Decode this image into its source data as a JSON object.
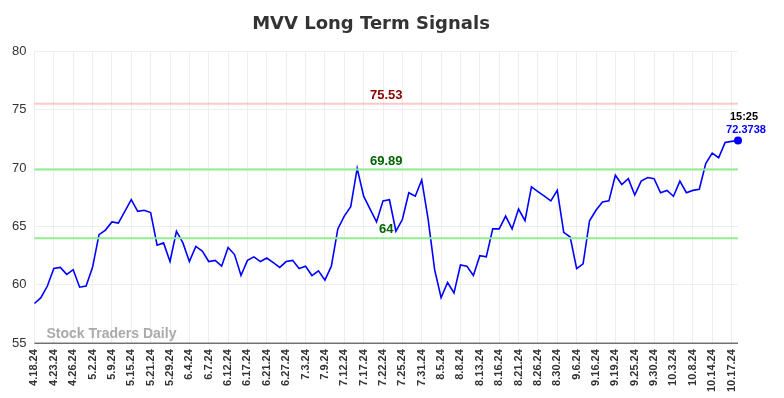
{
  "chart_data": {
    "type": "line",
    "title": "MVV Long Term Signals",
    "categories": [
      "4.18.24",
      null,
      null,
      "4.23.24",
      null,
      null,
      "4.26.24",
      null,
      null,
      "5.2.24",
      null,
      null,
      "5.9.24",
      null,
      null,
      "5.15.24",
      null,
      null,
      "5.21.24",
      null,
      null,
      "5.29.24",
      null,
      null,
      "6.4.24",
      null,
      null,
      "6.7.24",
      null,
      null,
      "6.12.24",
      null,
      null,
      "6.17.24",
      null,
      null,
      "6.21.24",
      null,
      null,
      "6.27.24",
      null,
      null,
      "7.3.24",
      null,
      null,
      "7.9.24",
      null,
      null,
      "7.12.24",
      null,
      null,
      "7.17.24",
      null,
      null,
      "7.22.24",
      null,
      null,
      "7.25.24",
      null,
      null,
      "7.31.24",
      null,
      null,
      "8.5.24",
      null,
      null,
      "8.8.24",
      null,
      null,
      "8.13.24",
      null,
      null,
      "8.16.24",
      null,
      null,
      "8.21.24",
      null,
      null,
      "8.26.24",
      null,
      null,
      "8.30.24",
      null,
      null,
      "9.6.24",
      null,
      null,
      "9.16.24",
      null,
      null,
      "9.19.24",
      null,
      null,
      "9.25.24",
      null,
      null,
      "9.30.24",
      null,
      null,
      "10.3.24",
      null,
      null,
      "10.8.24",
      null,
      null,
      "10.14.24",
      null,
      null,
      "10.17.24",
      null
    ],
    "values": [
      58.4,
      58.9,
      59.9,
      61.4,
      61.5,
      60.9,
      61.3,
      59.8,
      59.9,
      61.5,
      64.3,
      64.7,
      65.4,
      65.3,
      66.3,
      67.3,
      66.3,
      66.4,
      66.2,
      63.4,
      63.6,
      62.0,
      64.6,
      63.6,
      62.0,
      63.3,
      62.9,
      62.0,
      62.1,
      61.6,
      63.2,
      62.6,
      60.8,
      62.1,
      62.4,
      62.0,
      62.3,
      61.9,
      61.5,
      62.0,
      62.1,
      61.4,
      61.6,
      60.8,
      61.2,
      60.4,
      61.6,
      64.8,
      65.9,
      66.7,
      70.0,
      67.6,
      66.5,
      65.4,
      67.2,
      67.3,
      64.6,
      65.6,
      67.9,
      67.6,
      69.0,
      65.6,
      61.3,
      58.9,
      60.2,
      59.3,
      61.7,
      61.6,
      60.8,
      62.5,
      62.4,
      64.8,
      64.8,
      65.9,
      64.8,
      66.5,
      65.5,
      68.4,
      68.0,
      67.6,
      67.2,
      68.1,
      64.5,
      64.1,
      61.4,
      61.8,
      65.5,
      66.4,
      67.1,
      67.2,
      69.4,
      68.6,
      69.1,
      67.7,
      68.9,
      69.2,
      69.1,
      67.9,
      68.1,
      67.6,
      68.9,
      67.9,
      68.1,
      68.2,
      70.4,
      71.3,
      70.9,
      72.2,
      72.3,
      72.3738
    ],
    "color": "#0000ff",
    "ylim": [
      55,
      80
    ],
    "yticks": [
      55,
      60,
      65,
      70,
      75,
      80
    ],
    "grid": true,
    "hlines": [
      {
        "value": 75.53,
        "label": "75.53",
        "color": "#8b0000"
      },
      {
        "value": 69.89,
        "label": "69.89",
        "color": "#006400"
      },
      {
        "value": 64,
        "label": "64",
        "color": "#006400"
      }
    ],
    "annotations": [
      {
        "text": "15:25"
      },
      {
        "text": "72.3738",
        "value": 72.3738
      }
    ],
    "watermark": "Stock Traders Daily"
  }
}
